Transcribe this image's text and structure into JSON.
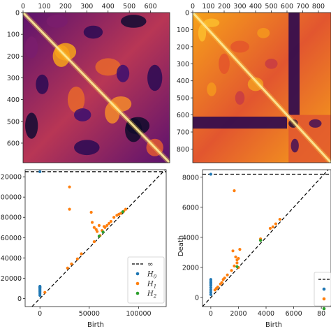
{
  "chart_data": [
    {
      "type": "heatmap",
      "title": "",
      "x_ticks": [
        "0",
        "100",
        "200",
        "300",
        "400",
        "500",
        "600"
      ],
      "y_ticks": [
        "0",
        "100",
        "200",
        "300",
        "400",
        "500",
        "600"
      ],
      "xlim": [
        0,
        690
      ],
      "ylim": [
        0,
        690
      ],
      "colormap": "inferno",
      "description_values": "self-similarity matrix"
    },
    {
      "type": "heatmap",
      "title": "",
      "x_ticks": [
        "0",
        "100",
        "200",
        "300",
        "400",
        "500",
        "600",
        "700",
        "800"
      ],
      "y_ticks": [
        "0",
        "100",
        "200",
        "300",
        "400",
        "500",
        "600",
        "700",
        "800"
      ],
      "xlim": [
        0,
        880
      ],
      "ylim": [
        0,
        880
      ],
      "colormap": "inferno"
    },
    {
      "type": "scatter",
      "xlabel": "Birth",
      "ylabel": "",
      "xlim": [
        -15000,
        128000
      ],
      "ylim": [
        -8000,
        127000
      ],
      "x_ticks": [
        "0",
        "50000",
        "100000"
      ],
      "y_ticks": [
        "0",
        "20000",
        "40000",
        "60000",
        "80000",
        "100000",
        "120000"
      ],
      "infinity_level": 125000,
      "legend_position": "lower-right",
      "legend": [
        {
          "label": "∞",
          "kind": "dashed"
        },
        {
          "label": "H0",
          "base": "H",
          "sub": "0",
          "color": "#1f77b4"
        },
        {
          "label": "H1",
          "base": "H",
          "sub": "1",
          "color": "#ff7f0e"
        },
        {
          "label": "H2",
          "base": "H",
          "sub": "2",
          "color": "#2ca02c"
        }
      ],
      "series": [
        {
          "name": "H0",
          "color": "#1f77b4",
          "x": [
            0,
            0,
            0,
            0,
            0,
            0,
            0,
            0,
            0,
            0,
            0,
            0
          ],
          "y": [
            3000,
            4500,
            6000,
            7000,
            8000,
            9000,
            10000,
            10500,
            11000,
            11500,
            12000,
            125000
          ]
        },
        {
          "name": "H1",
          "color": "#ff7f0e",
          "x": [
            30000,
            30000,
            52000,
            53000,
            55000,
            57000,
            58000,
            60000,
            61000,
            63000,
            65000,
            66000,
            68000,
            70000,
            72000,
            75000,
            78000,
            80000,
            82000,
            85000,
            87000,
            55000,
            32000,
            38000,
            42000,
            28000,
            5000
          ],
          "y": [
            110000,
            88000,
            85000,
            75000,
            70000,
            68000,
            66000,
            72000,
            62000,
            67000,
            71000,
            70000,
            72000,
            74000,
            76000,
            80000,
            82000,
            83000,
            84000,
            86000,
            88000,
            56000,
            34000,
            39000,
            44000,
            30000,
            6000
          ]
        },
        {
          "name": "H2",
          "color": "#2ca02c",
          "x": [
            60000,
            64000,
            84000
          ],
          "y": [
            61500,
            65500,
            85500
          ]
        }
      ]
    },
    {
      "type": "scatter",
      "xlabel": "Birth",
      "ylabel": "Death",
      "xlim": [
        -600,
        8700
      ],
      "ylim": [
        -600,
        8500
      ],
      "x_ticks": [
        "0",
        "2000",
        "4000",
        "6000",
        "80"
      ],
      "y_ticks": [
        "0",
        "2000",
        "4000",
        "6000",
        "8000"
      ],
      "infinity_level": 8200,
      "legend_position": "lower-right",
      "legend": [
        {
          "label": "",
          "kind": "dashed"
        },
        {
          "label": "",
          "color": "#1f77b4"
        },
        {
          "label": "",
          "color": "#ff7f0e"
        },
        {
          "label": "",
          "color": "#2ca02c"
        }
      ],
      "series": [
        {
          "name": "H0",
          "color": "#1f77b4",
          "x": [
            0,
            0,
            0,
            0,
            0,
            0,
            0,
            0,
            0,
            0
          ],
          "y": [
            200,
            350,
            500,
            650,
            800,
            900,
            1000,
            1100,
            1200,
            8200
          ]
        },
        {
          "name": "H1",
          "color": "#ff7f0e",
          "x": [
            1700,
            1800,
            1900,
            2000,
            2100,
            2000,
            1700,
            1500,
            1200,
            1000,
            900,
            800,
            700,
            500,
            400,
            300,
            4300,
            4500,
            4700,
            3600,
            5000,
            1600,
            1900
          ],
          "y": [
            7100,
            2700,
            2300,
            2600,
            3200,
            2000,
            2100,
            1800,
            1500,
            1300,
            1200,
            1000,
            900,
            700,
            600,
            500,
            4600,
            4700,
            4900,
            3900,
            5200,
            3100,
            2500
          ]
        },
        {
          "name": "H2",
          "color": "#2ca02c",
          "x": [
            3600,
            1900
          ],
          "y": [
            3800,
            2050
          ]
        }
      ]
    }
  ]
}
